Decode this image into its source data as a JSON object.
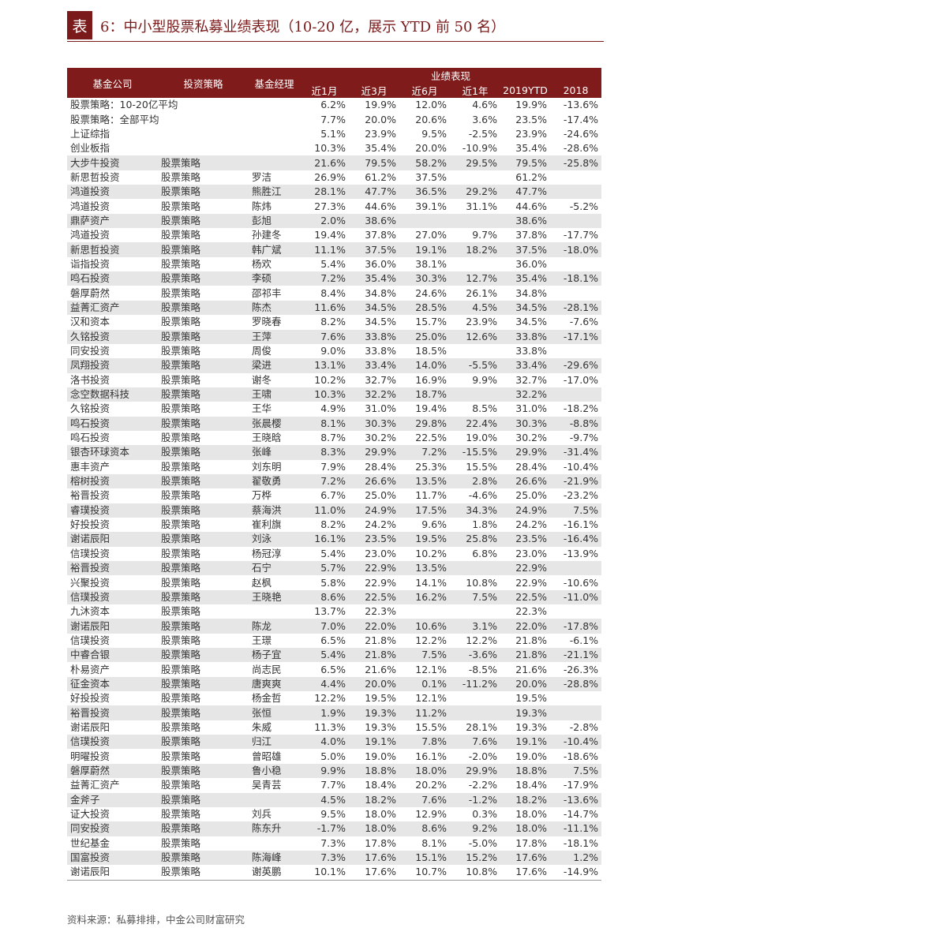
{
  "header": {
    "label": "表",
    "title": "6：中小型股票私募业绩表现（10-20 亿，展示 YTD 前 50 名）"
  },
  "table": {
    "columns": [
      "基金公司",
      "投资策略",
      "基金经理"
    ],
    "group": "业绩表现",
    "subcolumns": [
      "近1月",
      "近3月",
      "近6月",
      "近1年",
      "2019YTD",
      "2018"
    ],
    "rows": [
      [
        "股票策略：10-20亿平均",
        null,
        null,
        "6.2%",
        "19.9%",
        "12.0%",
        "4.6%",
        "19.9%",
        "-13.6%"
      ],
      [
        "股票策略：全部平均",
        null,
        null,
        "7.7%",
        "20.0%",
        "20.6%",
        "3.6%",
        "23.5%",
        "-17.4%"
      ],
      [
        "上证综指",
        null,
        null,
        "5.1%",
        "23.9%",
        "9.5%",
        "-2.5%",
        "23.9%",
        "-24.6%"
      ],
      [
        "创业板指",
        null,
        null,
        "10.3%",
        "35.4%",
        "20.0%",
        "-10.9%",
        "35.4%",
        "-28.6%"
      ],
      [
        "大步牛投资",
        "股票策略",
        null,
        "21.6%",
        "79.5%",
        "58.2%",
        "29.5%",
        "79.5%",
        "-25.8%"
      ],
      [
        "新思哲投资",
        "股票策略",
        "罗洁",
        "26.9%",
        "61.2%",
        "37.5%",
        null,
        "61.2%",
        null
      ],
      [
        "鸿道投资",
        "股票策略",
        "熊胜江",
        "28.1%",
        "47.7%",
        "36.5%",
        "29.2%",
        "47.7%",
        null
      ],
      [
        "鸿道投资",
        "股票策略",
        "陈炜",
        "27.3%",
        "44.6%",
        "39.1%",
        "31.1%",
        "44.6%",
        "-5.2%"
      ],
      [
        "鼎萨资产",
        "股票策略",
        "彭旭",
        "2.0%",
        "38.6%",
        null,
        null,
        "38.6%",
        null
      ],
      [
        "鸿道投资",
        "股票策略",
        "孙建冬",
        "19.4%",
        "37.8%",
        "27.0%",
        "9.7%",
        "37.8%",
        "-17.7%"
      ],
      [
        "新思哲投资",
        "股票策略",
        "韩广斌",
        "11.1%",
        "37.5%",
        "19.1%",
        "18.2%",
        "37.5%",
        "-18.0%"
      ],
      [
        "诣指投资",
        "股票策略",
        "杨欢",
        "5.4%",
        "36.0%",
        "38.1%",
        null,
        "36.0%",
        null
      ],
      [
        "鸣石投资",
        "股票策略",
        "李硕",
        "7.2%",
        "35.4%",
        "30.3%",
        "12.7%",
        "35.4%",
        "-18.1%"
      ],
      [
        "磐厚蔚然",
        "股票策略",
        "邵祁丰",
        "8.4%",
        "34.8%",
        "24.6%",
        "26.1%",
        "34.8%",
        null
      ],
      [
        "益菁汇资产",
        "股票策略",
        "陈杰",
        "11.6%",
        "34.5%",
        "28.5%",
        "4.5%",
        "34.5%",
        "-28.1%"
      ],
      [
        "汉和资本",
        "股票策略",
        "罗晓春",
        "8.2%",
        "34.5%",
        "15.7%",
        "23.9%",
        "34.5%",
        "-7.6%"
      ],
      [
        "久铭投资",
        "股票策略",
        "王萍",
        "7.6%",
        "33.8%",
        "25.0%",
        "12.6%",
        "33.8%",
        "-17.1%"
      ],
      [
        "同安投资",
        "股票策略",
        "周俊",
        "9.0%",
        "33.8%",
        "18.5%",
        null,
        "33.8%",
        null
      ],
      [
        "凤翔投资",
        "股票策略",
        "梁进",
        "13.1%",
        "33.4%",
        "14.0%",
        "-5.5%",
        "33.4%",
        "-29.6%"
      ],
      [
        "洛书投资",
        "股票策略",
        "谢冬",
        "10.2%",
        "32.7%",
        "16.9%",
        "9.9%",
        "32.7%",
        "-17.0%"
      ],
      [
        "念空数据科技",
        "股票策略",
        "王啸",
        "10.3%",
        "32.2%",
        "18.7%",
        null,
        "32.2%",
        null
      ],
      [
        "久铭投资",
        "股票策略",
        "王华",
        "4.9%",
        "31.0%",
        "19.4%",
        "8.5%",
        "31.0%",
        "-18.2%"
      ],
      [
        "鸣石投资",
        "股票策略",
        "张晨樱",
        "8.1%",
        "30.3%",
        "29.8%",
        "22.4%",
        "30.3%",
        "-8.8%"
      ],
      [
        "鸣石投资",
        "股票策略",
        "王晓晗",
        "8.7%",
        "30.2%",
        "22.5%",
        "19.0%",
        "30.2%",
        "-9.7%"
      ],
      [
        "银杏环球资本",
        "股票策略",
        "张峰",
        "8.3%",
        "29.9%",
        "7.2%",
        "-15.5%",
        "29.9%",
        "-31.4%"
      ],
      [
        "惠丰资产",
        "股票策略",
        "刘东明",
        "7.9%",
        "28.4%",
        "25.3%",
        "15.5%",
        "28.4%",
        "-10.4%"
      ],
      [
        "榕树投资",
        "股票策略",
        "翟敬勇",
        "7.2%",
        "26.6%",
        "13.5%",
        "2.8%",
        "26.6%",
        "-21.9%"
      ],
      [
        "裕晋投资",
        "股票策略",
        "万桦",
        "6.7%",
        "25.0%",
        "11.7%",
        "-4.6%",
        "25.0%",
        "-23.2%"
      ],
      [
        "睿璞投资",
        "股票策略",
        "蔡海洪",
        "11.0%",
        "24.9%",
        "17.5%",
        "34.3%",
        "24.9%",
        "7.5%"
      ],
      [
        "好投投资",
        "股票策略",
        "崔利旗",
        "8.2%",
        "24.2%",
        "9.6%",
        "1.8%",
        "24.2%",
        "-16.1%"
      ],
      [
        "谢诺辰阳",
        "股票策略",
        "刘泳",
        "16.1%",
        "23.5%",
        "19.5%",
        "25.8%",
        "23.5%",
        "-16.4%"
      ],
      [
        "信璞投资",
        "股票策略",
        "杨冠淳",
        "5.4%",
        "23.0%",
        "10.2%",
        "6.8%",
        "23.0%",
        "-13.9%"
      ],
      [
        "裕晋投资",
        "股票策略",
        "石宁",
        "5.7%",
        "22.9%",
        "13.5%",
        null,
        "22.9%",
        null
      ],
      [
        "兴聚投资",
        "股票策略",
        "赵枫",
        "5.8%",
        "22.9%",
        "14.1%",
        "10.8%",
        "22.9%",
        "-10.6%"
      ],
      [
        "信璞投资",
        "股票策略",
        "王晓艳",
        "8.6%",
        "22.5%",
        "16.2%",
        "7.5%",
        "22.5%",
        "-11.0%"
      ],
      [
        "九沐资本",
        "股票策略",
        null,
        "13.7%",
        "22.3%",
        null,
        null,
        "22.3%",
        null
      ],
      [
        "谢诺辰阳",
        "股票策略",
        "陈龙",
        "7.0%",
        "22.0%",
        "10.6%",
        "3.1%",
        "22.0%",
        "-17.8%"
      ],
      [
        "信璞投资",
        "股票策略",
        "王璟",
        "6.5%",
        "21.8%",
        "12.2%",
        "12.2%",
        "21.8%",
        "-6.1%"
      ],
      [
        "中睿合银",
        "股票策略",
        "杨子宜",
        "5.4%",
        "21.8%",
        "7.5%",
        "-3.6%",
        "21.8%",
        "-21.1%"
      ],
      [
        "朴易资产",
        "股票策略",
        "尚志民",
        "6.5%",
        "21.6%",
        "12.1%",
        "-8.5%",
        "21.6%",
        "-26.3%"
      ],
      [
        "征金资本",
        "股票策略",
        "唐爽爽",
        "4.4%",
        "20.0%",
        "0.1%",
        "-11.2%",
        "20.0%",
        "-28.8%"
      ],
      [
        "好投投资",
        "股票策略",
        "杨金哲",
        "12.2%",
        "19.5%",
        "12.1%",
        null,
        "19.5%",
        null
      ],
      [
        "裕晋投资",
        "股票策略",
        "张恒",
        "1.9%",
        "19.3%",
        "11.2%",
        null,
        "19.3%",
        null
      ],
      [
        "谢诺辰阳",
        "股票策略",
        "朱威",
        "11.3%",
        "19.3%",
        "15.5%",
        "28.1%",
        "19.3%",
        "-2.8%"
      ],
      [
        "信璞投资",
        "股票策略",
        "归江",
        "4.0%",
        "19.1%",
        "7.8%",
        "7.6%",
        "19.1%",
        "-10.4%"
      ],
      [
        "明曜投资",
        "股票策略",
        "曾昭雄",
        "5.0%",
        "19.0%",
        "16.1%",
        "-2.0%",
        "19.0%",
        "-18.6%"
      ],
      [
        "磐厚蔚然",
        "股票策略",
        "鲁小稳",
        "9.9%",
        "18.8%",
        "18.0%",
        "29.9%",
        "18.8%",
        "7.5%"
      ],
      [
        "益菁汇资产",
        "股票策略",
        "吴青芸",
        "7.7%",
        "18.4%",
        "20.2%",
        "-2.2%",
        "18.4%",
        "-17.9%"
      ],
      [
        "金斧子",
        "股票策略",
        null,
        "4.5%",
        "18.2%",
        "7.6%",
        "-1.2%",
        "18.2%",
        "-13.6%"
      ],
      [
        "证大投资",
        "股票策略",
        "刘兵",
        "9.5%",
        "18.0%",
        "12.9%",
        "0.3%",
        "18.0%",
        "-14.7%"
      ],
      [
        "同安投资",
        "股票策略",
        "陈东升",
        "-1.7%",
        "18.0%",
        "8.6%",
        "9.2%",
        "18.0%",
        "-11.1%"
      ],
      [
        "世纪基金",
        "股票策略",
        null,
        "7.3%",
        "17.8%",
        "8.1%",
        "-5.0%",
        "17.8%",
        "-18.1%"
      ],
      [
        "国富投资",
        "股票策略",
        "陈海峰",
        "7.3%",
        "17.6%",
        "15.1%",
        "15.2%",
        "17.6%",
        "1.2%"
      ],
      [
        "谢诺辰阳",
        "股票策略",
        "谢英鹏",
        "10.1%",
        "17.6%",
        "10.7%",
        "10.8%",
        "17.6%",
        "-14.9%"
      ]
    ]
  },
  "source": "资料来源：私募排排，中金公司财富研究"
}
